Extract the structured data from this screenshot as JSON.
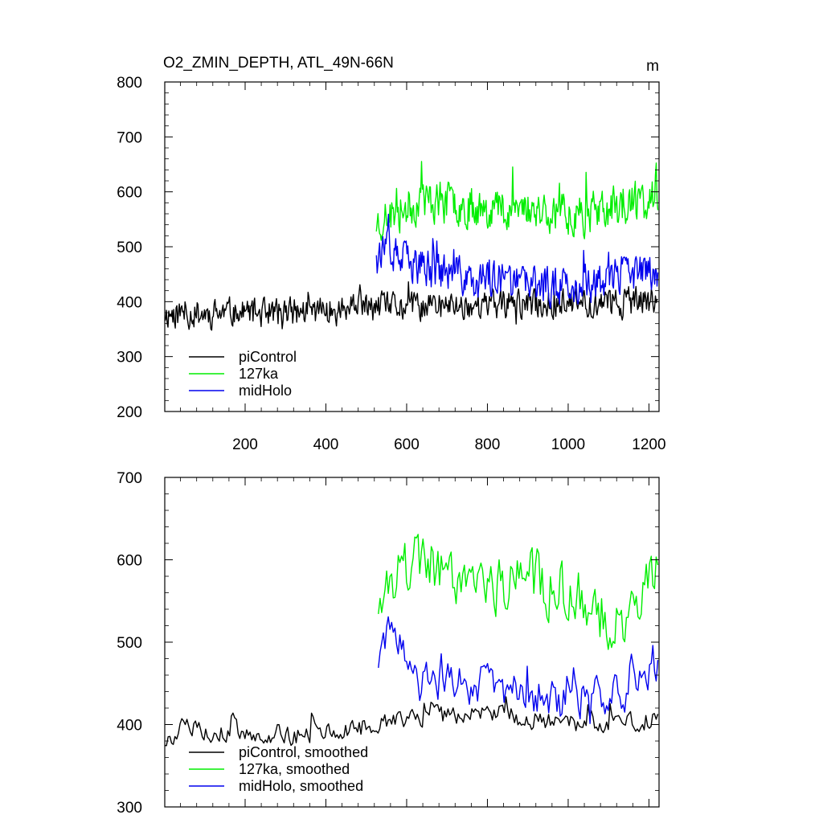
{
  "chart_data": [
    {
      "id": "top",
      "type": "line",
      "title": "O2_ZMIN_DEPTH, ATL_49N-66N",
      "units": "m",
      "xlim": [
        1,
        1225
      ],
      "ylim": [
        200,
        800
      ],
      "xticks": [
        200,
        400,
        600,
        800,
        1000,
        1200
      ],
      "xtick_labels": [
        "200",
        "400",
        "600",
        "800",
        "1000",
        "1200"
      ],
      "yticks": [
        200,
        300,
        400,
        500,
        600,
        700,
        800
      ],
      "ytick_labels": [
        "200",
        "300",
        "400",
        "500",
        "600",
        "700",
        "800"
      ],
      "legend_position": "bottom-left",
      "series": [
        {
          "name": "piControl",
          "color": "#000000",
          "x_range": [
            1,
            1222
          ],
          "n": 610,
          "base": 380,
          "amp": 36,
          "spike": 45,
          "seed": 11,
          "trend": [
            [
              1,
              378
            ],
            [
              300,
              380
            ],
            [
              500,
              388
            ],
            [
              700,
              392
            ],
            [
              900,
              395
            ],
            [
              1222,
              400
            ]
          ]
        },
        {
          "name": "127ka",
          "color": "#00ee00",
          "x_range": [
            525,
            1222
          ],
          "n": 350,
          "base": 560,
          "amp": 52,
          "spike": 70,
          "seed": 23,
          "trend": [
            [
              525,
              545
            ],
            [
              640,
              585
            ],
            [
              760,
              575
            ],
            [
              900,
              570
            ],
            [
              1050,
              560
            ],
            [
              1222,
              585
            ]
          ]
        },
        {
          "name": "midHolo",
          "color": "#0000ee",
          "x_range": [
            525,
            1222
          ],
          "n": 350,
          "base": 450,
          "amp": 48,
          "spike": 60,
          "seed": 37,
          "trend": [
            [
              525,
              500
            ],
            [
              600,
              470
            ],
            [
              760,
              440
            ],
            [
              900,
              430
            ],
            [
              1050,
              430
            ],
            [
              1222,
              460
            ]
          ]
        }
      ]
    },
    {
      "id": "bottom",
      "type": "line",
      "title": "",
      "xlim": [
        1,
        1225
      ],
      "ylim": [
        300,
        700
      ],
      "xticks": [
        200,
        400,
        600,
        800,
        1000,
        1200
      ],
      "xtick_labels": [],
      "yticks": [
        300,
        400,
        500,
        600,
        700
      ],
      "ytick_labels": [
        "300",
        "400",
        "500",
        "600",
        "700"
      ],
      "legend_position": "bottom-left",
      "series": [
        {
          "name": "piControl, smoothed",
          "color": "#000000",
          "x_range": [
            1,
            1222
          ],
          "n": 290,
          "base": 385,
          "amp": 16,
          "spike": 25,
          "seed": 5,
          "trend": [
            [
              1,
              380
            ],
            [
              40,
              395
            ],
            [
              300,
              385
            ],
            [
              450,
              392
            ],
            [
              560,
              405
            ],
            [
              800,
              415
            ],
            [
              1000,
              400
            ],
            [
              1222,
              405
            ]
          ]
        },
        {
          "name": "127ka, smoothed",
          "color": "#00ee00",
          "x_range": [
            530,
            1222
          ],
          "n": 170,
          "base": 560,
          "amp": 50,
          "spike": 45,
          "seed": 19,
          "trend": [
            [
              530,
              520
            ],
            [
              580,
              590
            ],
            [
              650,
              600
            ],
            [
              800,
              570
            ],
            [
              900,
              580
            ],
            [
              1000,
              560
            ],
            [
              1120,
              520
            ],
            [
              1222,
              590
            ]
          ]
        },
        {
          "name": "midHolo, smoothed",
          "color": "#0000ee",
          "x_range": [
            530,
            1222
          ],
          "n": 170,
          "base": 440,
          "amp": 34,
          "spike": 40,
          "seed": 29,
          "trend": [
            [
              530,
              480
            ],
            [
              560,
              510
            ],
            [
              620,
              450
            ],
            [
              800,
              450
            ],
            [
              1000,
              425
            ],
            [
              1150,
              445
            ],
            [
              1222,
              480
            ]
          ]
        }
      ]
    }
  ]
}
